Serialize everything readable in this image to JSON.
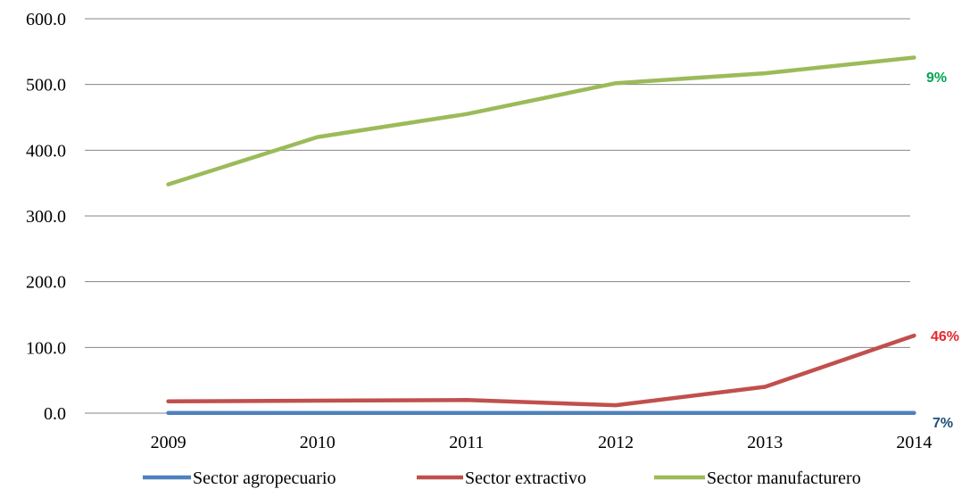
{
  "chart_data": {
    "type": "line",
    "title": "",
    "xlabel": "",
    "ylabel": "",
    "categories": [
      "2009",
      "2010",
      "2011",
      "2012",
      "2013",
      "2014"
    ],
    "ylim": [
      0,
      600
    ],
    "yticks": [
      "0.0",
      "100.0",
      "200.0",
      "300.0",
      "400.0",
      "500.0",
      "600.0"
    ],
    "grid": true,
    "legend_position": "bottom",
    "series": [
      {
        "name": "Sector agropecuario",
        "color": "#4F81BD",
        "values": [
          0.3,
          0.3,
          0.3,
          0.3,
          0.3,
          0.3
        ]
      },
      {
        "name": "Sector extractivo",
        "color": "#C0504D",
        "values": [
          18,
          19,
          20,
          12,
          40,
          118
        ]
      },
      {
        "name": "Sector manufacturero",
        "color": "#9BBB59",
        "values": [
          348,
          420,
          455,
          502,
          517,
          541
        ]
      }
    ],
    "annotations": [
      {
        "text": "9%",
        "series": "Sector manufacturero",
        "color": "#00A651"
      },
      {
        "text": "46%",
        "series": "Sector extractivo",
        "color": "#E8262B"
      },
      {
        "text": "7%",
        "series": "Sector agropecuario",
        "color": "#1F4E79"
      }
    ]
  }
}
